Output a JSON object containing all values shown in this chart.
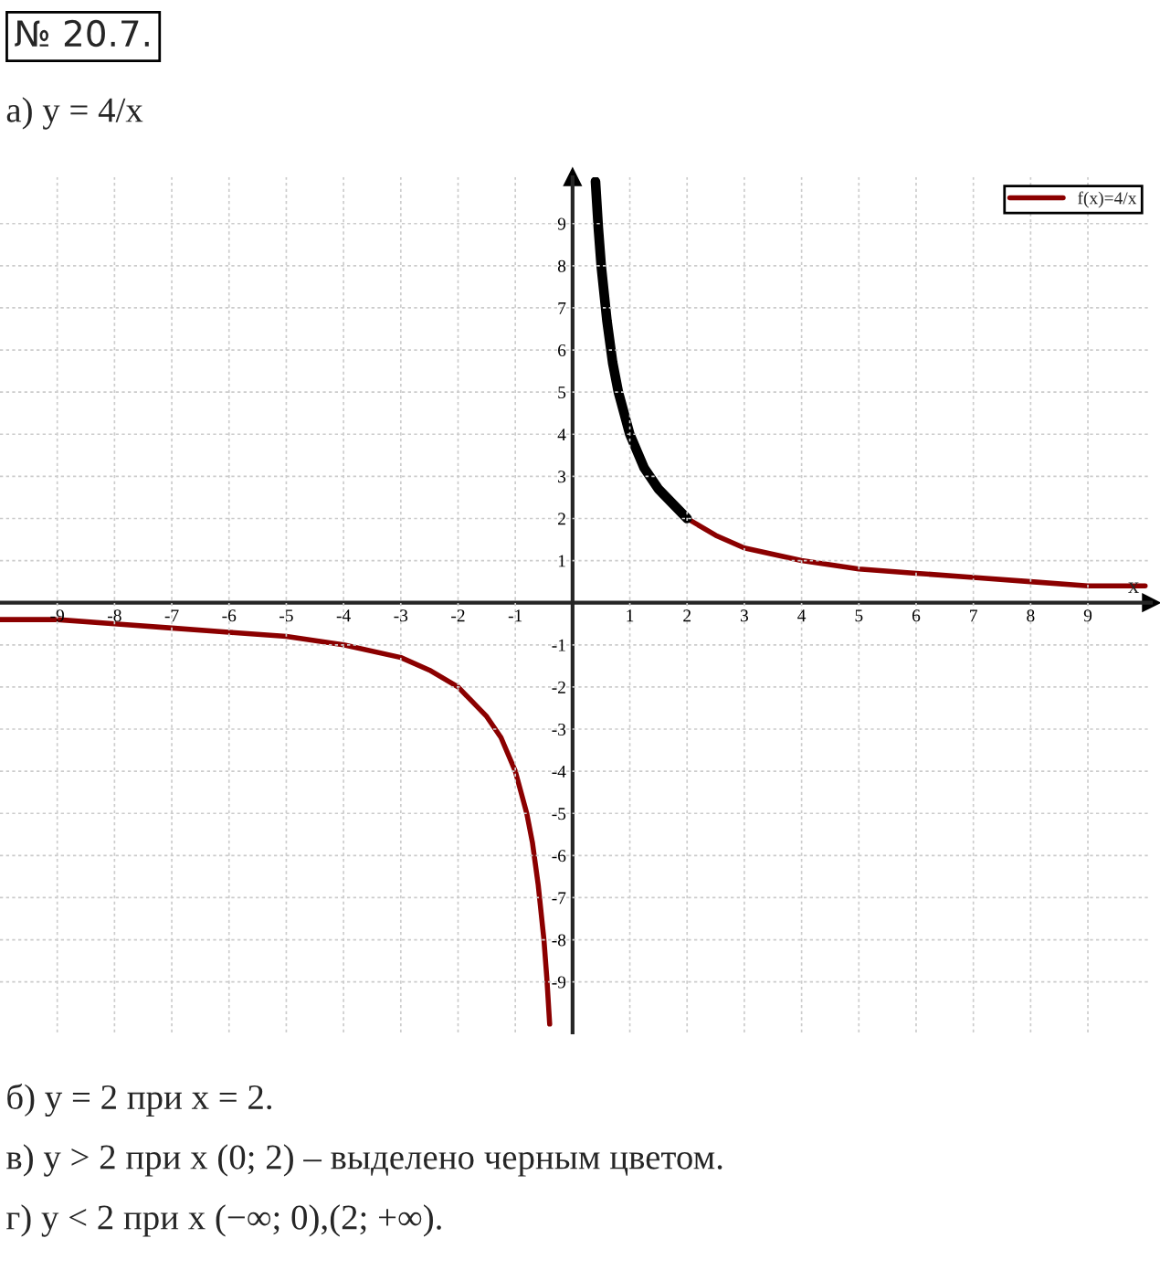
{
  "chart_data": {
    "type": "line",
    "title": "№ 20.7.",
    "subtitle": "а) y = 4/x",
    "xlabel": "x",
    "x": [
      -10,
      -9,
      -8,
      -7,
      -6,
      -5,
      -4,
      -3,
      -2.5,
      -2,
      -1.5,
      -1.25,
      -1,
      -0.8,
      -0.7,
      -0.6,
      -0.5,
      -0.45,
      -0.4,
      0,
      0.4,
      0.45,
      0.5,
      0.6,
      0.7,
      0.8,
      1,
      1.25,
      1.5,
      2,
      2.5,
      3,
      4,
      5,
      6,
      7,
      8,
      9,
      10
    ],
    "series": [
      {
        "name": "f(x)=4/x",
        "color": "#8b0000",
        "values": [
          -0.4,
          -0.4,
          -0.5,
          -0.6,
          -0.7,
          -0.8,
          -1,
          -1.3,
          -1.6,
          -2,
          -2.7,
          -3.2,
          -4,
          -5,
          -5.7,
          -6.7,
          -8,
          -8.9,
          -10,
          null,
          10,
          8.9,
          8,
          6.7,
          5.7,
          5,
          4,
          3.2,
          2.7,
          2,
          1.6,
          1.3,
          1,
          0.8,
          0.7,
          0.6,
          0.5,
          0.4,
          0.4
        ]
      },
      {
        "color": "#000000",
        "x": [
          0.4,
          0.45,
          0.5,
          0.6,
          0.7,
          0.8,
          1,
          1.25,
          1.5,
          2
        ],
        "values": [
          10,
          8.9,
          8,
          6.7,
          5.7,
          5,
          4,
          3.2,
          2.7,
          2
        ]
      }
    ],
    "xlim": [
      -10,
      10.1
    ],
    "ylim": [
      -10.2,
      10.1
    ],
    "xticks": [
      -9,
      -8,
      -7,
      -6,
      -5,
      -4,
      -3,
      -2,
      -1,
      1,
      2,
      3,
      4,
      5,
      6,
      7,
      8,
      9
    ],
    "yticks": [
      -9,
      -8,
      -7,
      -6,
      -5,
      -4,
      -3,
      -2,
      -1,
      1,
      2,
      3,
      4,
      5,
      6,
      7,
      8,
      9
    ],
    "grid": true,
    "legend": "top right",
    "marker": "none",
    "line_style": "solid",
    "annotations": [
      "б) y = 2 при x = 2.",
      "в) y > 2 при x (0; 2) – выделено черным цветом.",
      "г) y < 2 при x (−∞; 0),(2; +∞)."
    ]
  }
}
